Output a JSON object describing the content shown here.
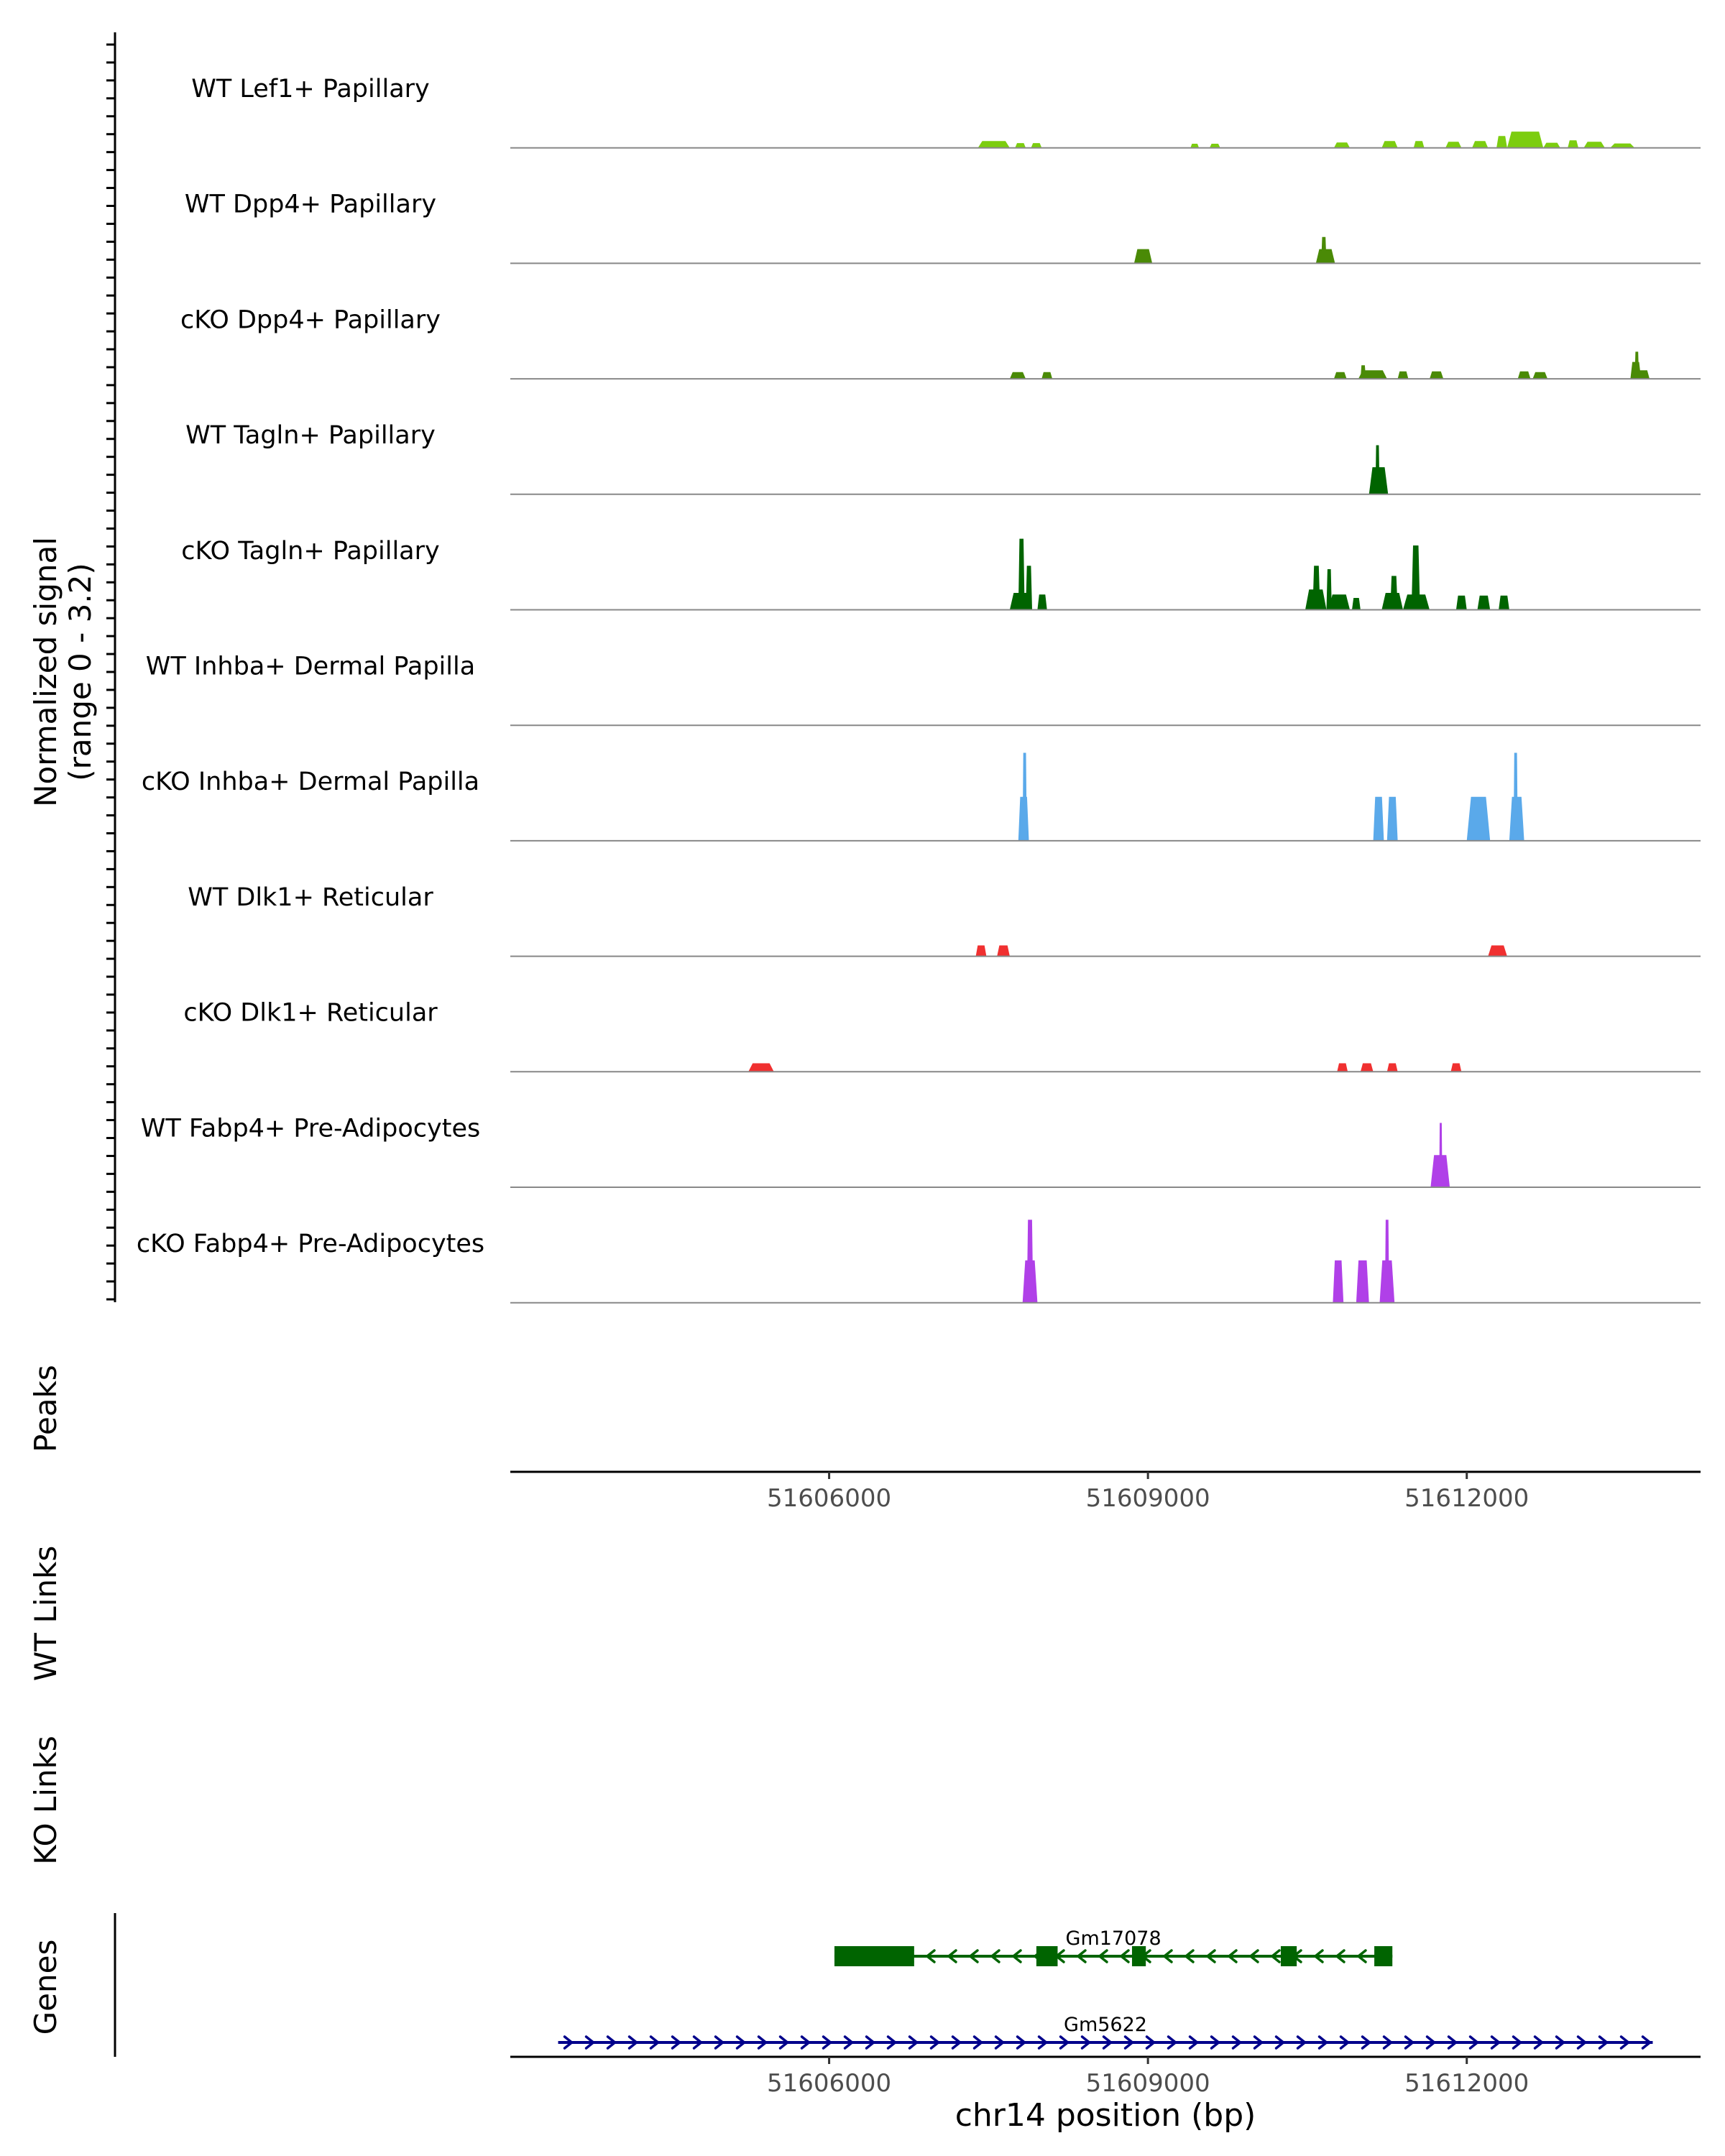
{
  "chart_data": {
    "type": "area",
    "title": "",
    "chromosome": "chr14",
    "xlabel": "chr14 position (bp)",
    "ylabel": "Normalized signal",
    "ylabel_range": "(range 0 - 3.2)",
    "signal_range": [
      0,
      3.2
    ],
    "xlim": [
      51603000,
      51614200
    ],
    "x_ticks": [
      51606000,
      51609000,
      51612000
    ],
    "x_tick_labels": [
      "51606000",
      "51609000",
      "51612000"
    ],
    "colors": {
      "lef1": "#7ccd0f",
      "dpp4": "#4a8a06",
      "tagln": "#006400",
      "inhba": "#5aa9ea",
      "dlk1": "#f03030",
      "fabp4": "#b040e8",
      "gene_minus": "#006400",
      "gene_plus": "#00008b",
      "baseline": "#888888",
      "axis": "#000000"
    },
    "tracks": [
      {
        "label": "WT Lef1+ Papillary",
        "color_key": "lef1",
        "peaks": [
          [
            51607400,
            51607700,
            0.2
          ],
          [
            51607750,
            51607850,
            0.14
          ],
          [
            51607900,
            51608000,
            0.14
          ],
          [
            51609400,
            51609480,
            0.12
          ],
          [
            51609580,
            51609680,
            0.12
          ],
          [
            51610750,
            51610900,
            0.16
          ],
          [
            51611200,
            51611350,
            0.2
          ],
          [
            51611500,
            51611600,
            0.2
          ],
          [
            51611800,
            51611950,
            0.18
          ],
          [
            51612050,
            51612200,
            0.2
          ],
          [
            51612280,
            51612380,
            0.35
          ],
          [
            51612380,
            51612720,
            0.48
          ],
          [
            51612720,
            51612880,
            0.15
          ],
          [
            51612950,
            51613050,
            0.22
          ],
          [
            51613100,
            51613300,
            0.18
          ],
          [
            51613350,
            51613580,
            0.13
          ]
        ]
      },
      {
        "label": "WT Dpp4+ Papillary",
        "color_key": "dpp4",
        "peaks": [
          [
            51608870,
            51609040,
            0.42
          ],
          [
            51610580,
            51610760,
            0.42
          ],
          [
            51610630,
            51610680,
            0.78
          ]
        ]
      },
      {
        "label": "cKO Dpp4+ Papillary",
        "color_key": "dpp4",
        "peaks": [
          [
            51607700,
            51607850,
            0.2
          ],
          [
            51608000,
            51608100,
            0.2
          ],
          [
            51610750,
            51610870,
            0.2
          ],
          [
            51611000,
            51611050,
            0.4
          ],
          [
            51610980,
            51611250,
            0.25
          ],
          [
            51611350,
            51611450,
            0.22
          ],
          [
            51611650,
            51611780,
            0.22
          ],
          [
            51612480,
            51612600,
            0.22
          ],
          [
            51612620,
            51612760,
            0.2
          ],
          [
            51613540,
            51613640,
            0.5
          ],
          [
            51613580,
            51613620,
            0.8
          ],
          [
            51613600,
            51613720,
            0.25
          ]
        ]
      },
      {
        "label": "WT Tagln+ Papillary",
        "color_key": "tagln",
        "peaks": [
          [
            51611080,
            51611260,
            0.8
          ],
          [
            51611140,
            51611180,
            1.45
          ]
        ]
      },
      {
        "label": "cKO Tagln+ Papillary",
        "color_key": "tagln",
        "peaks": [
          [
            51607700,
            51607900,
            0.5
          ],
          [
            51607780,
            51607840,
            2.1
          ],
          [
            51607850,
            51607910,
            1.3
          ],
          [
            51607960,
            51608050,
            0.45
          ],
          [
            51610480,
            51610680,
            0.6
          ],
          [
            51610550,
            51610620,
            1.3
          ],
          [
            51610680,
            51610730,
            1.2
          ],
          [
            51610700,
            51610900,
            0.45
          ],
          [
            51610920,
            51611000,
            0.35
          ],
          [
            51611200,
            51611400,
            0.5
          ],
          [
            51611280,
            51611350,
            1.0
          ],
          [
            51611400,
            51611650,
            0.45
          ],
          [
            51611480,
            51611560,
            1.9
          ],
          [
            51611900,
            51612000,
            0.42
          ],
          [
            51612100,
            51612220,
            0.42
          ],
          [
            51612300,
            51612400,
            0.42
          ]
        ]
      },
      {
        "label": "WT Inhba+ Dermal Papilla",
        "color_key": "inhba",
        "peaks": []
      },
      {
        "label": "cKO Inhba+ Dermal Papilla",
        "color_key": "inhba",
        "peaks": [
          [
            51607780,
            51607880,
            1.3
          ],
          [
            51607820,
            51607860,
            2.6
          ],
          [
            51611120,
            51611220,
            1.3
          ],
          [
            51611250,
            51611350,
            1.3
          ],
          [
            51612000,
            51612220,
            1.3
          ],
          [
            51612400,
            51612540,
            1.3
          ],
          [
            51612440,
            51612480,
            2.6
          ]
        ]
      },
      {
        "label": "WT Dlk1+ Reticular",
        "color_key": "dlk1",
        "peaks": [
          [
            51607380,
            51607480,
            0.32
          ],
          [
            51607580,
            51607700,
            0.32
          ],
          [
            51612200,
            51612380,
            0.32
          ]
        ]
      },
      {
        "label": "cKO Dlk1+ Reticular",
        "color_key": "dlk1",
        "peaks": [
          [
            51605240,
            51605480,
            0.25
          ],
          [
            51610780,
            51610880,
            0.25
          ],
          [
            51611000,
            51611120,
            0.25
          ],
          [
            51611250,
            51611350,
            0.25
          ],
          [
            51611850,
            51611950,
            0.25
          ]
        ]
      },
      {
        "label": "WT Fabp4+ Pre-Adipocytes",
        "color_key": "fabp4",
        "peaks": [
          [
            51611660,
            51611840,
            0.95
          ],
          [
            51611740,
            51611770,
            1.9
          ]
        ]
      },
      {
        "label": "cKO Fabp4+ Pre-Adipocytes",
        "color_key": "fabp4",
        "peaks": [
          [
            51607820,
            51607960,
            1.25
          ],
          [
            51607860,
            51607920,
            2.45
          ],
          [
            51610740,
            51610840,
            1.25
          ],
          [
            51610960,
            51611080,
            1.25
          ],
          [
            51611180,
            51611320,
            1.25
          ],
          [
            51611230,
            51611270,
            2.45
          ]
        ]
      }
    ],
    "panels": {
      "peaks": "Peaks",
      "wt_links": "WT Links",
      "ko_links": "KO Links",
      "genes": "Genes"
    },
    "genes": [
      {
        "name": "Gm17078",
        "strand": "-",
        "color_key": "gene_minus",
        "start": 51606050,
        "end": 51611300,
        "exons": [
          [
            51606050,
            51606800
          ],
          [
            51607950,
            51608150
          ],
          [
            51608850,
            51608980
          ],
          [
            51610250,
            51610400
          ],
          [
            51611130,
            51611300
          ]
        ]
      },
      {
        "name": "Gm5622",
        "strand": "+",
        "color_key": "gene_plus",
        "start": 51603450,
        "end": 51613750,
        "exons": []
      }
    ]
  }
}
